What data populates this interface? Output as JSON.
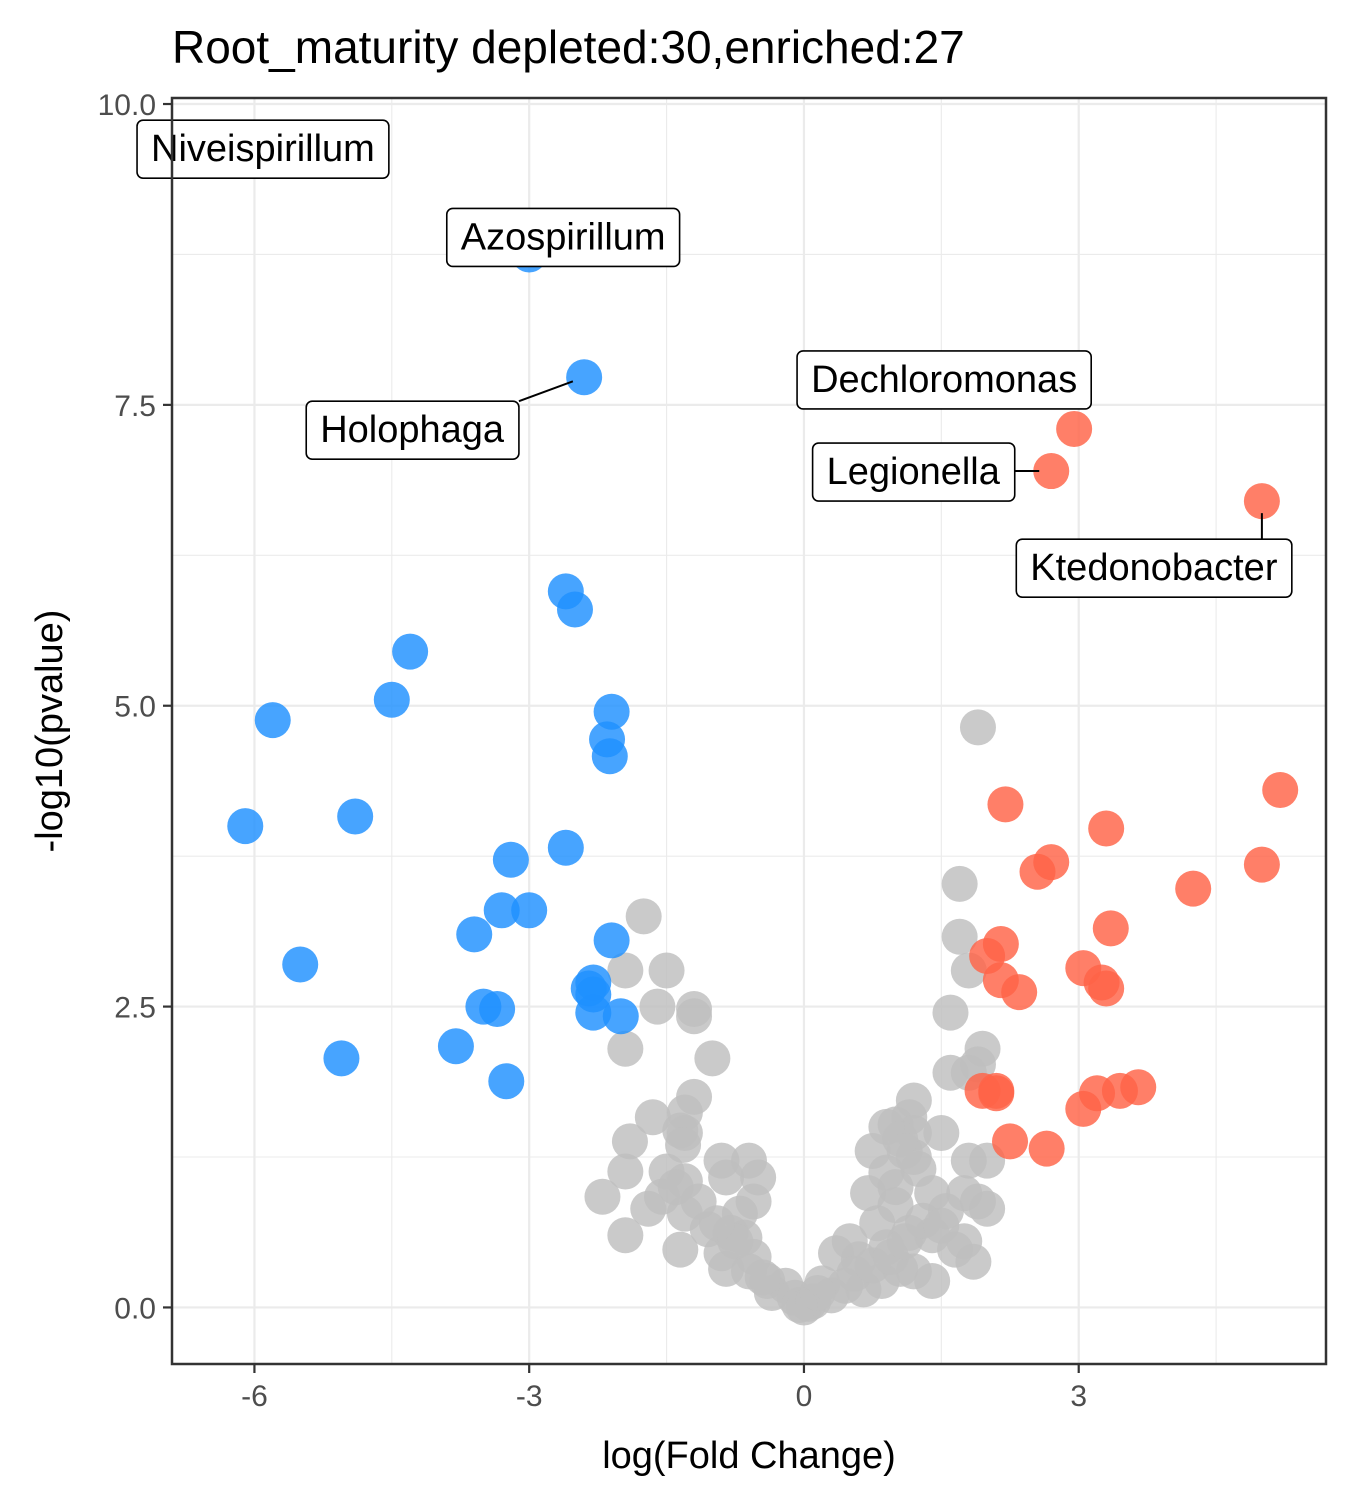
{
  "chart_data": {
    "type": "scatter",
    "title": "Root_maturity depleted:30,enriched:27",
    "xlabel": "log(Fold Change)",
    "ylabel": "-log10(pvalue)",
    "xlim": [
      -6.9,
      5.7
    ],
    "ylim": [
      -0.47,
      10.05
    ],
    "x_ticks": [
      -6,
      -3,
      0,
      3
    ],
    "x_tick_labels": [
      "-6",
      "-3",
      "0",
      "3"
    ],
    "y_ticks": [
      0,
      2.5,
      5,
      7.5,
      10
    ],
    "y_tick_labels": [
      "0.0",
      "2.5",
      "5.0",
      "7.5",
      "10.0"
    ],
    "grid": true,
    "colors": {
      "depleted": "#1e90ff",
      "enriched": "#ff6347",
      "not_significant": "#bebebe"
    },
    "series": [
      {
        "group": "depleted",
        "points": [
          [
            -6.3,
            9.55
          ],
          [
            -3.0,
            8.75
          ],
          [
            -2.4,
            7.73
          ],
          [
            -2.6,
            5.95
          ],
          [
            -2.5,
            5.8
          ],
          [
            -4.3,
            5.45
          ],
          [
            -4.5,
            5.05
          ],
          [
            -5.8,
            4.88
          ],
          [
            -2.1,
            4.95
          ],
          [
            -2.15,
            4.72
          ],
          [
            -2.12,
            4.58
          ],
          [
            -6.1,
            4.0
          ],
          [
            -4.9,
            4.08
          ],
          [
            -2.6,
            3.82
          ],
          [
            -3.2,
            3.72
          ],
          [
            -3.3,
            3.3
          ],
          [
            -3.0,
            3.3
          ],
          [
            -3.6,
            3.1
          ],
          [
            -2.1,
            3.05
          ],
          [
            -5.5,
            2.85
          ],
          [
            -2.3,
            2.7
          ],
          [
            -2.35,
            2.65
          ],
          [
            -2.3,
            2.6
          ],
          [
            -3.5,
            2.5
          ],
          [
            -3.35,
            2.48
          ],
          [
            -2.3,
            2.45
          ],
          [
            -2.0,
            2.42
          ],
          [
            -5.05,
            2.07
          ],
          [
            -3.8,
            2.17
          ],
          [
            -3.25,
            1.88
          ]
        ]
      },
      {
        "group": "enriched",
        "points": [
          [
            2.95,
            7.3
          ],
          [
            2.7,
            6.95
          ],
          [
            5.0,
            6.7
          ],
          [
            5.2,
            4.3
          ],
          [
            2.2,
            4.18
          ],
          [
            3.3,
            3.98
          ],
          [
            2.7,
            3.7
          ],
          [
            2.55,
            3.62
          ],
          [
            5.0,
            3.68
          ],
          [
            4.25,
            3.48
          ],
          [
            3.35,
            3.15
          ],
          [
            2.15,
            3.02
          ],
          [
            2.0,
            2.92
          ],
          [
            3.05,
            2.82
          ],
          [
            3.25,
            2.7
          ],
          [
            2.15,
            2.72
          ],
          [
            2.35,
            2.62
          ],
          [
            3.3,
            2.65
          ],
          [
            3.65,
            1.83
          ],
          [
            3.45,
            1.8
          ],
          [
            3.2,
            1.78
          ],
          [
            1.95,
            1.8
          ],
          [
            2.1,
            1.8
          ],
          [
            3.05,
            1.65
          ],
          [
            2.25,
            1.38
          ],
          [
            2.65,
            1.32
          ],
          [
            2.1,
            1.78
          ]
        ]
      },
      {
        "group": "not_significant",
        "points": [
          [
            1.9,
            4.82
          ],
          [
            1.7,
            3.52
          ],
          [
            1.7,
            3.08
          ],
          [
            1.8,
            2.8
          ],
          [
            -1.75,
            3.25
          ],
          [
            -1.5,
            2.8
          ],
          [
            -1.95,
            2.8
          ],
          [
            -1.6,
            2.5
          ],
          [
            -1.2,
            2.48
          ],
          [
            -1.2,
            2.42
          ],
          [
            -1.95,
            2.15
          ],
          [
            -1.0,
            2.07
          ],
          [
            1.6,
            2.45
          ],
          [
            1.95,
            2.15
          ],
          [
            1.9,
            2.02
          ],
          [
            1.8,
            1.95
          ],
          [
            1.6,
            1.95
          ],
          [
            1.2,
            1.72
          ],
          [
            -1.2,
            1.75
          ],
          [
            -1.3,
            1.62
          ],
          [
            -1.65,
            1.58
          ],
          [
            -1.35,
            1.47
          ],
          [
            -1.3,
            1.45
          ],
          [
            -1.9,
            1.38
          ],
          [
            -1.32,
            1.35
          ],
          [
            1.0,
            1.52
          ],
          [
            1.15,
            1.58
          ],
          [
            1.5,
            1.45
          ],
          [
            1.2,
            1.45
          ],
          [
            0.9,
            1.5
          ],
          [
            0.75,
            1.3
          ],
          [
            1.1,
            1.3
          ],
          [
            -0.9,
            1.22
          ],
          [
            -0.6,
            1.22
          ],
          [
            -1.95,
            1.13
          ],
          [
            -1.5,
            1.13
          ],
          [
            -1.3,
            1.05
          ],
          [
            -0.85,
            1.08
          ],
          [
            -0.5,
            1.08
          ],
          [
            1.8,
            1.22
          ],
          [
            2.0,
            1.22
          ],
          [
            1.25,
            1.15
          ],
          [
            0.9,
            1.12
          ],
          [
            1.4,
            0.95
          ],
          [
            1.75,
            0.95
          ],
          [
            -2.2,
            0.92
          ],
          [
            -1.55,
            0.92
          ],
          [
            -0.55,
            0.88
          ],
          [
            0.7,
            0.95
          ],
          [
            1.0,
            0.85
          ],
          [
            1.9,
            0.88
          ],
          [
            2.0,
            0.82
          ],
          [
            -1.7,
            0.82
          ],
          [
            -1.3,
            0.78
          ],
          [
            -0.7,
            0.78
          ],
          [
            1.55,
            0.8
          ],
          [
            -1.05,
            0.65
          ],
          [
            -0.8,
            0.62
          ],
          [
            -0.65,
            0.58
          ],
          [
            1.15,
            0.62
          ],
          [
            1.4,
            0.6
          ],
          [
            1.75,
            0.55
          ],
          [
            -1.95,
            0.6
          ],
          [
            -1.35,
            0.48
          ],
          [
            -0.9,
            0.45
          ],
          [
            -0.55,
            0.42
          ],
          [
            0.5,
            0.55
          ],
          [
            0.9,
            0.5
          ],
          [
            1.85,
            0.38
          ],
          [
            1.65,
            0.48
          ],
          [
            -0.85,
            0.32
          ],
          [
            -0.6,
            0.3
          ],
          [
            -0.4,
            0.22
          ],
          [
            0.35,
            0.45
          ],
          [
            0.6,
            0.4
          ],
          [
            1.2,
            0.3
          ],
          [
            1.4,
            0.22
          ],
          [
            -0.35,
            0.12
          ],
          [
            -0.2,
            0.18
          ],
          [
            -0.1,
            0.08
          ],
          [
            0.05,
            0.03
          ],
          [
            0.2,
            0.2
          ],
          [
            0.3,
            0.1
          ],
          [
            0.45,
            0.18
          ],
          [
            0.65,
            0.15
          ],
          [
            0.85,
            0.22
          ],
          [
            1.05,
            0.32
          ],
          [
            -0.45,
            0.25
          ],
          [
            0.0,
            0.0
          ],
          [
            0.1,
            0.05
          ],
          [
            -0.05,
            0.02
          ],
          [
            0.15,
            0.12
          ],
          [
            0.55,
            0.28
          ],
          [
            0.75,
            0.35
          ],
          [
            0.95,
            0.42
          ],
          [
            1.1,
            0.55
          ],
          [
            1.3,
            0.72
          ],
          [
            1.5,
            0.68
          ],
          [
            -0.75,
            0.55
          ],
          [
            -0.95,
            0.7
          ],
          [
            -1.15,
            0.88
          ],
          [
            -1.4,
            1.0
          ],
          [
            0.8,
            0.7
          ],
          [
            1.0,
            1.0
          ],
          [
            1.2,
            1.25
          ],
          [
            1.05,
            1.4
          ]
        ]
      }
    ],
    "labels": [
      {
        "text": "Niveispirillum",
        "x": -6.3,
        "y": 9.55
      },
      {
        "text": "Azospirillum",
        "x": -3.0,
        "y": 8.75
      },
      {
        "text": "Holophaga",
        "x": -2.4,
        "y": 7.73
      },
      {
        "text": "Dechloromonas",
        "x": 2.95,
        "y": 7.3
      },
      {
        "text": "Legionella",
        "x": 2.7,
        "y": 6.95
      },
      {
        "text": "Ktedonobacter",
        "x": 5.0,
        "y": 6.7
      }
    ]
  }
}
